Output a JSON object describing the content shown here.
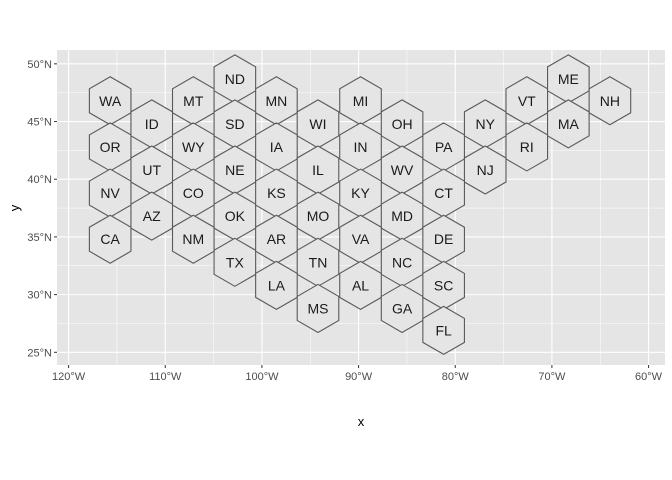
{
  "chart_data": {
    "type": "map",
    "xlabel": "x",
    "ylabel": "y",
    "xlim": [
      -121.2,
      -58.3
    ],
    "ylim": [
      23.9,
      51.2
    ],
    "x_ticks": [
      {
        "value": -120,
        "label": "120°W"
      },
      {
        "value": -110,
        "label": "110°W"
      },
      {
        "value": -100,
        "label": "100°W"
      },
      {
        "value": -90,
        "label": "90°W"
      },
      {
        "value": -80,
        "label": "80°W"
      },
      {
        "value": -70,
        "label": "70°W"
      },
      {
        "value": -60,
        "label": "60°W"
      }
    ],
    "y_ticks": [
      {
        "value": 25,
        "label": "25°N"
      },
      {
        "value": 30,
        "label": "30°N"
      },
      {
        "value": 35,
        "label": "35°N"
      },
      {
        "value": 40,
        "label": "40°N"
      },
      {
        "value": 45,
        "label": "45°N"
      },
      {
        "value": 50,
        "label": "50°N"
      }
    ],
    "grid": true,
    "colors": {
      "panel": "#e5e5e5",
      "grid": "#ffffff",
      "hex_fill": "#e5e5e5",
      "hex_stroke": "#595959"
    },
    "hexagons": [
      {
        "label": "WA",
        "x": -115.7,
        "y": 46.8
      },
      {
        "label": "ID",
        "x": -111.4,
        "y": 44.8
      },
      {
        "label": "MT",
        "x": -107.1,
        "y": 46.8
      },
      {
        "label": "ND",
        "x": -102.8,
        "y": 48.7
      },
      {
        "label": "MN",
        "x": -98.5,
        "y": 46.8
      },
      {
        "label": "SD",
        "x": -102.8,
        "y": 44.8
      },
      {
        "label": "WI",
        "x": -94.2,
        "y": 44.8
      },
      {
        "label": "MI",
        "x": -89.8,
        "y": 46.8
      },
      {
        "label": "OH",
        "x": -85.5,
        "y": 44.8
      },
      {
        "label": "NY",
        "x": -76.9,
        "y": 44.8
      },
      {
        "label": "VT",
        "x": -72.6,
        "y": 46.8
      },
      {
        "label": "ME",
        "x": -68.3,
        "y": 48.7
      },
      {
        "label": "NH",
        "x": -64.0,
        "y": 46.8
      },
      {
        "label": "MA",
        "x": -68.3,
        "y": 44.8
      },
      {
        "label": "OR",
        "x": -115.7,
        "y": 42.8
      },
      {
        "label": "UT",
        "x": -111.4,
        "y": 40.8
      },
      {
        "label": "WY",
        "x": -107.1,
        "y": 42.8
      },
      {
        "label": "NE",
        "x": -102.8,
        "y": 40.8
      },
      {
        "label": "IA",
        "x": -98.5,
        "y": 42.8
      },
      {
        "label": "IL",
        "x": -94.2,
        "y": 40.8
      },
      {
        "label": "IN",
        "x": -89.8,
        "y": 42.8
      },
      {
        "label": "WV",
        "x": -85.5,
        "y": 40.8
      },
      {
        "label": "PA",
        "x": -81.2,
        "y": 42.8
      },
      {
        "label": "NJ",
        "x": -76.9,
        "y": 40.8
      },
      {
        "label": "RI",
        "x": -72.6,
        "y": 42.8
      },
      {
        "label": "NV",
        "x": -115.7,
        "y": 38.8
      },
      {
        "label": "AZ",
        "x": -111.4,
        "y": 36.8
      },
      {
        "label": "CO",
        "x": -107.1,
        "y": 38.8
      },
      {
        "label": "OK",
        "x": -102.8,
        "y": 36.8
      },
      {
        "label": "KS",
        "x": -98.5,
        "y": 38.8
      },
      {
        "label": "MO",
        "x": -94.2,
        "y": 36.8
      },
      {
        "label": "KY",
        "x": -89.8,
        "y": 38.8
      },
      {
        "label": "MD",
        "x": -85.5,
        "y": 36.8
      },
      {
        "label": "CT",
        "x": -81.2,
        "y": 38.8
      },
      {
        "label": "CA",
        "x": -115.7,
        "y": 34.8
      },
      {
        "label": "NM",
        "x": -107.1,
        "y": 34.8
      },
      {
        "label": "TX",
        "x": -102.8,
        "y": 32.8
      },
      {
        "label": "AR",
        "x": -98.5,
        "y": 34.8
      },
      {
        "label": "TN",
        "x": -94.2,
        "y": 32.8
      },
      {
        "label": "VA",
        "x": -89.8,
        "y": 34.8
      },
      {
        "label": "NC",
        "x": -85.5,
        "y": 32.8
      },
      {
        "label": "DE",
        "x": -81.2,
        "y": 34.8
      },
      {
        "label": "LA",
        "x": -98.5,
        "y": 30.8
      },
      {
        "label": "MS",
        "x": -94.2,
        "y": 28.8
      },
      {
        "label": "AL",
        "x": -89.8,
        "y": 30.8
      },
      {
        "label": "GA",
        "x": -85.5,
        "y": 28.8
      },
      {
        "label": "SC",
        "x": -81.2,
        "y": 30.8
      },
      {
        "label": "FL",
        "x": -81.2,
        "y": 26.9
      }
    ]
  }
}
